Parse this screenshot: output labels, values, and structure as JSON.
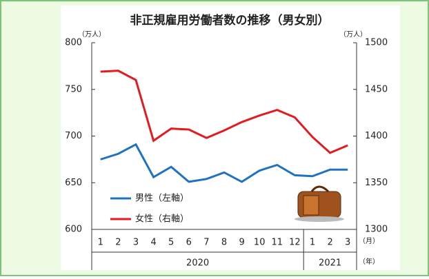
{
  "chart_data": {
    "type": "line",
    "title": "非正規雇用労働者数の推移（男女別）",
    "y_unit": "（万人）",
    "y2_unit": "（万人）",
    "categories": [
      "1",
      "2",
      "3",
      "4",
      "5",
      "6",
      "7",
      "8",
      "9",
      "10",
      "11",
      "12",
      "1",
      "2",
      "3"
    ],
    "x_unit": "（月）",
    "year_labels": [
      "2020",
      "2021"
    ],
    "year_unit": "（年）",
    "series": [
      {
        "name": "男性（左軸）",
        "color": "#1f72c2",
        "axis": "y",
        "values": [
          675,
          681,
          691,
          656,
          667,
          651,
          654,
          661,
          651,
          663,
          669,
          658,
          657,
          664,
          664
        ]
      },
      {
        "name": "女性（右軸）",
        "color": "#e51a1f",
        "axis": "y2",
        "values": [
          1469,
          1470,
          1460,
          1395,
          1408,
          1407,
          1398,
          1406,
          1415,
          1422,
          1428,
          1420,
          1399,
          1382,
          1390
        ]
      }
    ],
    "ylim": [
      600,
      800
    ],
    "yticks": [
      600,
      650,
      700,
      750,
      800
    ],
    "y2lim": [
      1300,
      1500
    ],
    "y2ticks": [
      1300,
      1350,
      1400,
      1450,
      1500
    ],
    "legend": "lower-left",
    "grid": false
  }
}
